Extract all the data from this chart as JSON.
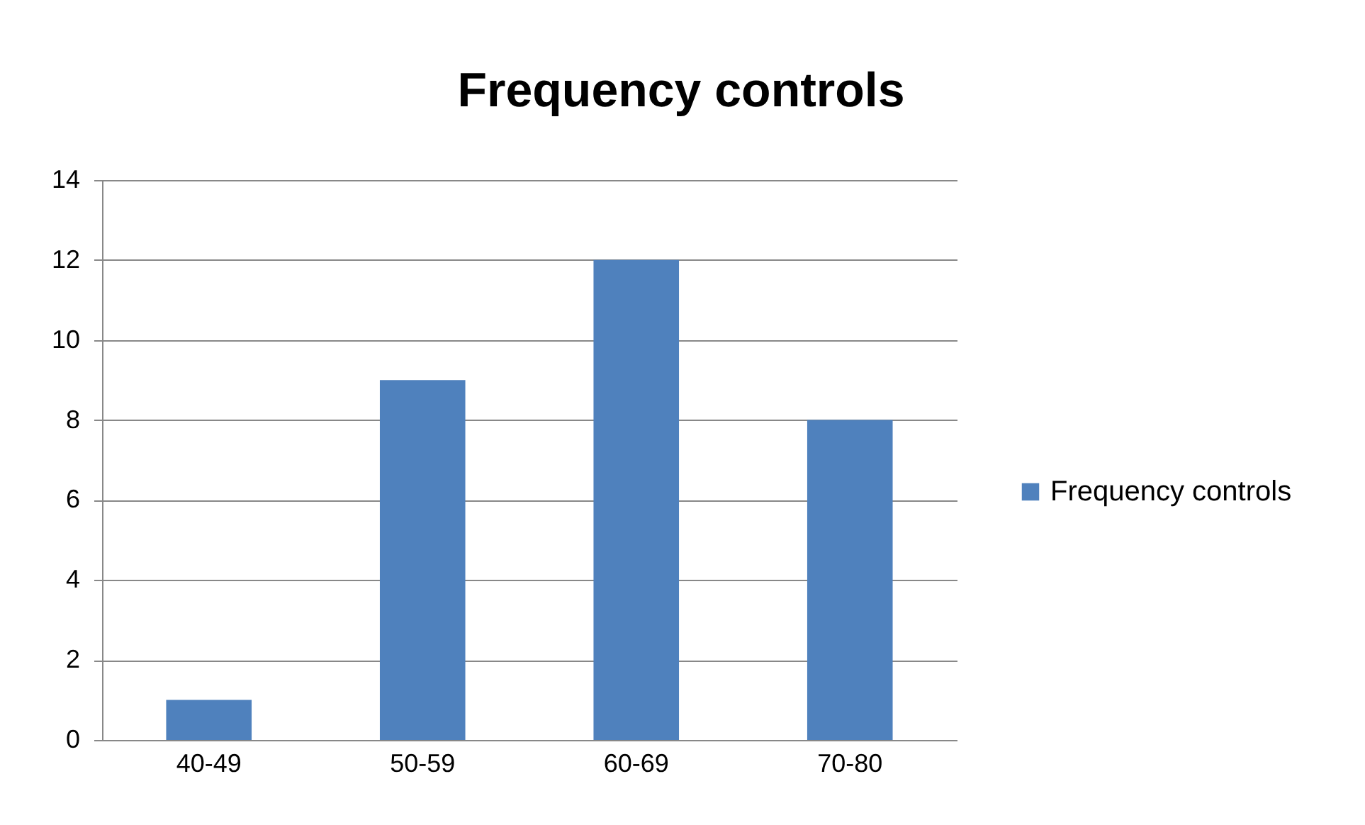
{
  "chart_data": {
    "type": "bar",
    "title": "Frequency controls",
    "categories": [
      "40-49",
      "50-59",
      "60-69",
      "70-80"
    ],
    "series": [
      {
        "name": "Frequency controls",
        "color": "#4f81bd",
        "values": [
          1,
          9,
          12,
          8
        ]
      }
    ],
    "ylim": [
      0,
      14
    ],
    "yticks": [
      0,
      2,
      4,
      6,
      8,
      10,
      12,
      14
    ],
    "grid": "y",
    "legend": "right"
  }
}
